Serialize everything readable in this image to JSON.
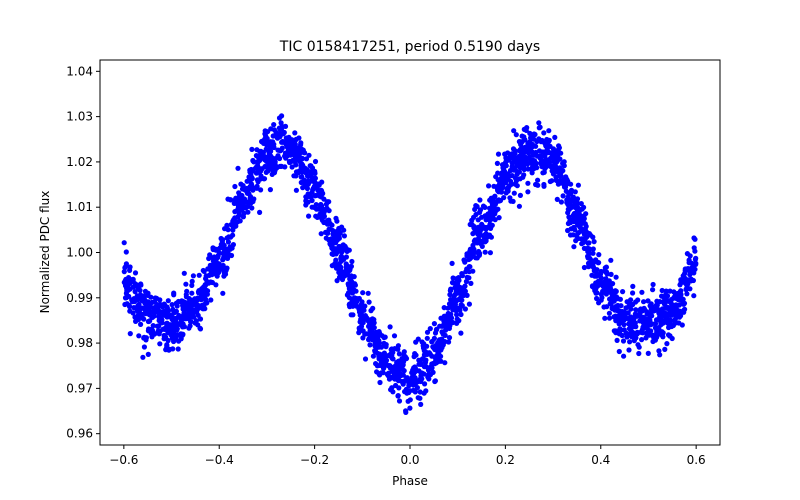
{
  "chart_data": {
    "type": "scatter",
    "title": "TIC 0158417251, period 0.5190 days",
    "xlabel": "Phase",
    "ylabel": "Normalized PDC flux",
    "xlim": [
      -0.65,
      0.65
    ],
    "ylim": [
      0.9575,
      1.0425
    ],
    "xticks": [
      -0.6,
      -0.4,
      -0.2,
      0.0,
      0.2,
      0.4,
      0.6
    ],
    "xtick_labels": [
      "−0.6",
      "−0.4",
      "−0.2",
      "0.0",
      "0.2",
      "0.4",
      "0.6"
    ],
    "yticks": [
      0.96,
      0.97,
      0.98,
      0.99,
      1.0,
      1.01,
      1.02,
      1.03,
      1.04
    ],
    "ytick_labels": [
      "0.96",
      "0.97",
      "0.98",
      "0.99",
      "1.00",
      "1.01",
      "1.02",
      "1.03",
      "1.04"
    ],
    "grid": false,
    "legend": "none",
    "marker_color": "#0000ff",
    "phase_range": [
      -0.6,
      0.6
    ],
    "curve": {
      "phase": [
        -0.6,
        -0.55,
        -0.5,
        -0.45,
        -0.4,
        -0.35,
        -0.3,
        -0.27,
        -0.25,
        -0.2,
        -0.15,
        -0.1,
        -0.05,
        0.0,
        0.05,
        0.1,
        0.15,
        0.2,
        0.25,
        0.27,
        0.3,
        0.35,
        0.4,
        0.45,
        0.5,
        0.55,
        0.6
      ],
      "flux": [
        0.994,
        0.986,
        0.984,
        0.988,
        0.998,
        1.012,
        1.021,
        1.023,
        1.022,
        1.014,
        1.0,
        0.986,
        0.976,
        0.972,
        0.977,
        0.99,
        1.005,
        1.017,
        1.022,
        1.022,
        1.02,
        1.008,
        0.993,
        0.985,
        0.984,
        0.987,
        0.997
      ],
      "scatter": 0.003
    }
  }
}
